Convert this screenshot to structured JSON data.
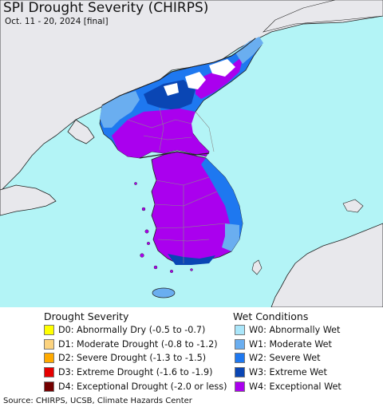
{
  "map": {
    "title": "SPI Drought Severity (CHIRPS)",
    "subtitle": "Oct. 11 - 20, 2024 [final]",
    "colors": {
      "sea": "#b3f4f6",
      "land": "#e8e8ec",
      "coast": "#202020",
      "border": "#8a8a8a"
    }
  },
  "legend": {
    "drought_title": "Drought Severity",
    "drought_items": [
      {
        "label": "D0: Abnormally Dry (-0.5 to -0.7)",
        "color": "#ffff00"
      },
      {
        "label": "D1: Moderate Drought (-0.8 to -1.2)",
        "color": "#fcd37f"
      },
      {
        "label": "D2: Severe Drought (-1.3 to -1.5)",
        "color": "#ffaa00"
      },
      {
        "label": "D3: Extreme Drought (-1.6 to -1.9)",
        "color": "#e60000"
      },
      {
        "label": "D4: Exceptional Drought (-2.0 or less)",
        "color": "#730000"
      }
    ],
    "wet_title": "Wet Conditions",
    "wet_items": [
      {
        "label": "W0: Abnormally Wet",
        "color": "#aae6fa"
      },
      {
        "label": "W1: Moderate Wet",
        "color": "#6aaef0"
      },
      {
        "label": "W2: Severe Wet",
        "color": "#1e78f0"
      },
      {
        "label": "W3: Extreme Wet",
        "color": "#0a46b4"
      },
      {
        "label": "W4: Exceptional Wet",
        "color": "#aa00ee"
      }
    ]
  },
  "source": "Source: CHIRPS, UCSB, Climate Hazards Center"
}
